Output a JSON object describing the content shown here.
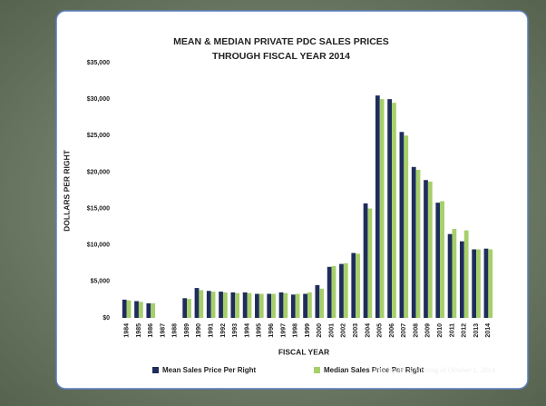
{
  "chart_data": {
    "type": "bar",
    "title": "MEAN & MEDIAN PRIVATE PDC SALES PRICES",
    "subtitle": "THROUGH FISCAL YEAR 2014",
    "x_label": "FISCAL YEAR",
    "y_label": "DOLLARS  PER  RIGHT",
    "annotation": "Attachment A Meeting of October 1, 2014",
    "categories": [
      "1984",
      "1985",
      "1986",
      "1987",
      "1988",
      "1989",
      "1990",
      "1991",
      "1992",
      "1993",
      "1994",
      "1995",
      "1996",
      "1997",
      "1998",
      "1999",
      "2000",
      "2001",
      "2002",
      "2003",
      "2004",
      "2005",
      "2006",
      "2007",
      "2008",
      "2009",
      "2010",
      "2011",
      "2012",
      "2013",
      "2014"
    ],
    "series": [
      {
        "name": "Mean Sales Price Per Right",
        "color": "#1f2d5c",
        "values": [
          2500,
          2300,
          2000,
          null,
          null,
          2700,
          4100,
          3700,
          3600,
          3500,
          3500,
          3300,
          3300,
          3500,
          3200,
          3300,
          4500,
          7000,
          7400,
          8900,
          15700,
          30500,
          30000,
          25500,
          20700,
          18900,
          15800,
          11500,
          10500,
          9400,
          9500
        ]
      },
      {
        "name": "Median Sales Price Per Right",
        "color": "#a6cf6a",
        "values": [
          2400,
          2200,
          2000,
          null,
          null,
          2600,
          3800,
          3600,
          3500,
          3400,
          3400,
          3300,
          3300,
          3400,
          3300,
          3500,
          4000,
          7100,
          7500,
          8800,
          15000,
          30000,
          29500,
          25000,
          20300,
          18700,
          16000,
          12200,
          12000,
          9400,
          9400
        ]
      }
    ],
    "ylim": [
      0,
      35000
    ],
    "yticks": [
      {
        "value": 0,
        "label": "$0"
      },
      {
        "value": 5000,
        "label": "$5,000"
      },
      {
        "value": 10000,
        "label": "$10,000"
      },
      {
        "value": 15000,
        "label": "$15,000"
      },
      {
        "value": 20000,
        "label": "$20,000"
      },
      {
        "value": 25000,
        "label": "$25,000"
      },
      {
        "value": 30000,
        "label": "$30,000"
      },
      {
        "value": 35000,
        "label": "$35,000"
      }
    ],
    "grid": false,
    "legend": "bottom"
  }
}
